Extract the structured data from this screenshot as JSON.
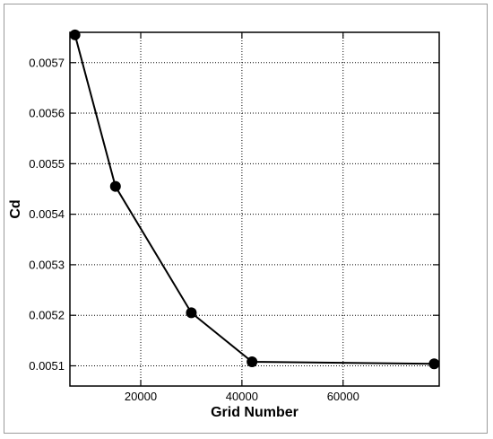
{
  "chart_data": {
    "type": "line",
    "xlabel": "Grid Number",
    "ylabel": "Cd",
    "xlim": [
      6000,
      79000
    ],
    "ylim": [
      0.00506,
      0.00576
    ],
    "x_ticks": [
      20000,
      40000,
      60000
    ],
    "x_tick_labels": [
      "20000",
      "40000",
      "60000"
    ],
    "y_ticks": [
      0.0051,
      0.0052,
      0.0053,
      0.0054,
      0.0055,
      0.0056,
      0.0057
    ],
    "y_tick_labels": [
      "0.0051",
      "0.0052",
      "0.0053",
      "0.0054",
      "0.0055",
      "0.0056",
      "0.0057"
    ],
    "grid": true,
    "series": [
      {
        "x": [
          7000,
          15000,
          30000,
          42000,
          78000
        ],
        "y": [
          0.005755,
          0.005455,
          0.005205,
          0.005108,
          0.005104
        ],
        "marker": "circle",
        "color": "#000000"
      }
    ]
  }
}
